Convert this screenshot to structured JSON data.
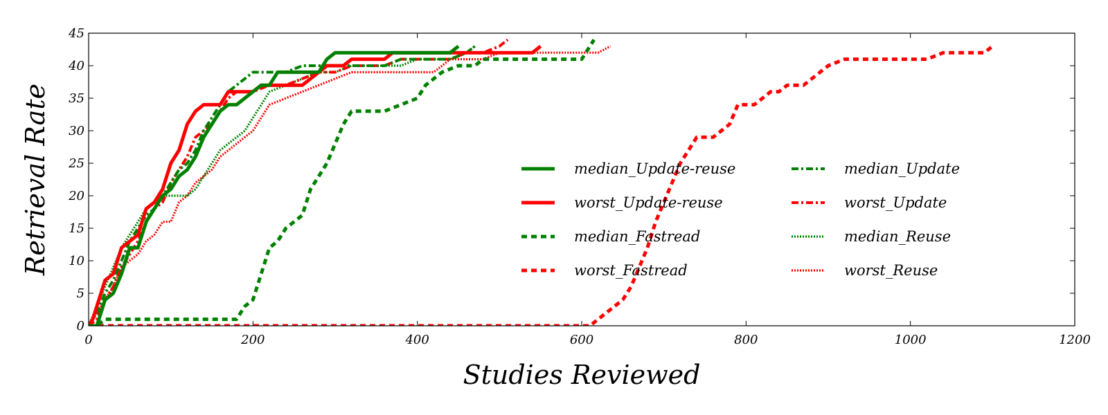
{
  "chart_data": {
    "type": "line",
    "title": "",
    "xlabel": "Studies Reviewed",
    "ylabel": "Retrieval Rate",
    "xlim": [
      0,
      1200
    ],
    "ylim": [
      0,
      45
    ],
    "xticks": [
      0,
      200,
      400,
      600,
      800,
      1000,
      1200
    ],
    "yticks": [
      0,
      5,
      10,
      15,
      20,
      25,
      30,
      35,
      40,
      45
    ],
    "grid": false,
    "legend_position": "center-right",
    "series": [
      {
        "name": "median_Update-reuse",
        "color": "#008000",
        "style": "solid",
        "x": [
          0,
          10,
          20,
          30,
          40,
          50,
          60,
          70,
          80,
          90,
          100,
          110,
          120,
          130,
          140,
          150,
          160,
          170,
          180,
          190,
          200,
          210,
          220,
          230,
          240,
          250,
          260,
          270,
          280,
          290,
          300,
          320,
          340,
          360,
          380,
          400,
          420,
          440,
          450
        ],
        "y": [
          0,
          0,
          4,
          5,
          8,
          12,
          12,
          16,
          18,
          20,
          21,
          23,
          24,
          26,
          29,
          31,
          33,
          34,
          34,
          35,
          36,
          37,
          37,
          39,
          39,
          39,
          39,
          39,
          39,
          41,
          42,
          42,
          42,
          42,
          42,
          42,
          42,
          42,
          43
        ]
      },
      {
        "name": "worst_Update-reuse",
        "color": "#ff0000",
        "style": "solid",
        "x": [
          0,
          5,
          10,
          20,
          30,
          40,
          50,
          60,
          70,
          80,
          90,
          100,
          110,
          120,
          130,
          140,
          150,
          160,
          170,
          180,
          190,
          200,
          210,
          220,
          240,
          260,
          270,
          280,
          290,
          300,
          310,
          320,
          340,
          360,
          370,
          380,
          400,
          420,
          440,
          460,
          480,
          500,
          520,
          540,
          550
        ],
        "y": [
          0,
          1,
          3,
          7,
          8,
          12,
          13,
          14,
          18,
          19,
          21,
          25,
          27,
          31,
          33,
          34,
          34,
          34,
          36,
          36,
          36,
          36,
          37,
          37,
          37,
          37,
          38,
          39,
          40,
          40,
          40,
          41,
          41,
          41,
          42,
          42,
          42,
          42,
          42,
          42,
          42,
          42,
          42,
          42,
          43
        ]
      },
      {
        "name": "median_Fastread",
        "color": "#008000",
        "style": "dashed",
        "x": [
          0,
          10,
          20,
          170,
          180,
          190,
          200,
          210,
          220,
          230,
          240,
          250,
          260,
          270,
          280,
          290,
          300,
          310,
          320,
          340,
          360,
          380,
          400,
          410,
          430,
          450,
          460,
          470,
          480,
          500,
          600,
          610,
          615
        ],
        "y": [
          0,
          0,
          1,
          1,
          1,
          3,
          4,
          8,
          12,
          13,
          15,
          16,
          17,
          21,
          23,
          25,
          28,
          31,
          33,
          33,
          33,
          34,
          35,
          37,
          39,
          40,
          40,
          40,
          41,
          41,
          41,
          43,
          44
        ]
      },
      {
        "name": "worst_Fastread",
        "color": "#ff0000",
        "style": "dashed",
        "x": [
          0,
          10,
          600,
          610,
          620,
          630,
          640,
          650,
          660,
          670,
          680,
          690,
          700,
          710,
          720,
          730,
          740,
          750,
          760,
          770,
          780,
          790,
          800,
          810,
          820,
          830,
          840,
          850,
          860,
          870,
          880,
          890,
          900,
          920,
          940,
          960,
          980,
          1000,
          1020,
          1040,
          1060,
          1080,
          1090,
          1100
        ],
        "y": [
          0,
          0,
          0,
          0,
          1,
          2,
          3,
          4,
          6,
          9,
          12,
          16,
          19,
          22,
          25,
          27,
          29,
          29,
          29,
          30,
          31,
          34,
          34,
          34,
          35,
          36,
          36,
          37,
          37,
          37,
          38,
          39,
          40,
          41,
          41,
          41,
          41,
          41,
          41,
          42,
          42,
          42,
          42,
          43
        ]
      },
      {
        "name": "median_Update",
        "color": "#008000",
        "style": "dashdot",
        "x": [
          0,
          10,
          20,
          30,
          40,
          50,
          60,
          70,
          80,
          90,
          100,
          110,
          120,
          130,
          140,
          150,
          160,
          170,
          180,
          190,
          200,
          220,
          240,
          260,
          280,
          300,
          320,
          340,
          360,
          380,
          400,
          420,
          440,
          460,
          470
        ],
        "y": [
          0,
          2,
          5,
          7,
          10,
          13,
          15,
          17,
          18,
          20,
          22,
          24,
          25,
          27,
          30,
          32,
          34,
          36,
          37,
          38,
          39,
          39,
          39,
          40,
          40,
          40,
          40,
          40,
          40,
          41,
          41,
          41,
          41,
          42,
          43
        ]
      },
      {
        "name": "worst_Update",
        "color": "#ff0000",
        "style": "dashdot",
        "x": [
          0,
          10,
          20,
          30,
          40,
          50,
          60,
          70,
          80,
          90,
          100,
          110,
          120,
          130,
          140,
          150,
          160,
          170,
          180,
          190,
          200,
          220,
          240,
          260,
          280,
          300,
          320,
          340,
          360,
          380,
          400,
          420,
          440,
          460,
          480,
          500,
          510
        ],
        "y": [
          0,
          1,
          4,
          6,
          9,
          11,
          13,
          16,
          18,
          19,
          22,
          24,
          26,
          29,
          30,
          31,
          33,
          35,
          36,
          36,
          36,
          37,
          37,
          38,
          39,
          39,
          40,
          40,
          40,
          41,
          41,
          41,
          41,
          42,
          42,
          43,
          44
        ]
      },
      {
        "name": "median_Reuse",
        "color": "#008000",
        "style": "dotted",
        "x": [
          0,
          10,
          20,
          30,
          40,
          50,
          60,
          70,
          80,
          90,
          100,
          110,
          120,
          130,
          140,
          150,
          160,
          170,
          180,
          190,
          200,
          210,
          220,
          240,
          260,
          280,
          300,
          320,
          340,
          360,
          380,
          400,
          420,
          440,
          460,
          470
        ],
        "y": [
          0,
          3,
          6,
          9,
          12,
          14,
          16,
          18,
          19,
          20,
          20,
          20,
          20,
          21,
          23,
          25,
          27,
          28,
          29,
          30,
          32,
          34,
          36,
          37,
          38,
          39,
          39,
          40,
          40,
          40,
          40,
          41,
          41,
          41,
          42,
          43
        ]
      },
      {
        "name": "worst_Reuse",
        "color": "#ff0000",
        "style": "dotted",
        "x": [
          0,
          10,
          20,
          30,
          40,
          50,
          60,
          70,
          80,
          90,
          100,
          110,
          120,
          130,
          140,
          150,
          160,
          170,
          180,
          190,
          200,
          210,
          220,
          240,
          260,
          280,
          300,
          320,
          340,
          360,
          380,
          400,
          420,
          440,
          460,
          480,
          500,
          520,
          540,
          560,
          580,
          600,
          620,
          635
        ],
        "y": [
          0,
          2,
          4,
          6,
          9,
          10,
          11,
          13,
          14,
          16,
          16,
          19,
          20,
          22,
          23,
          24,
          26,
          27,
          28,
          29,
          30,
          32,
          34,
          35,
          36,
          37,
          38,
          39,
          39,
          39,
          39,
          39,
          39,
          41,
          41,
          41,
          42,
          42,
          42,
          42,
          42,
          42,
          42,
          43
        ]
      }
    ]
  }
}
